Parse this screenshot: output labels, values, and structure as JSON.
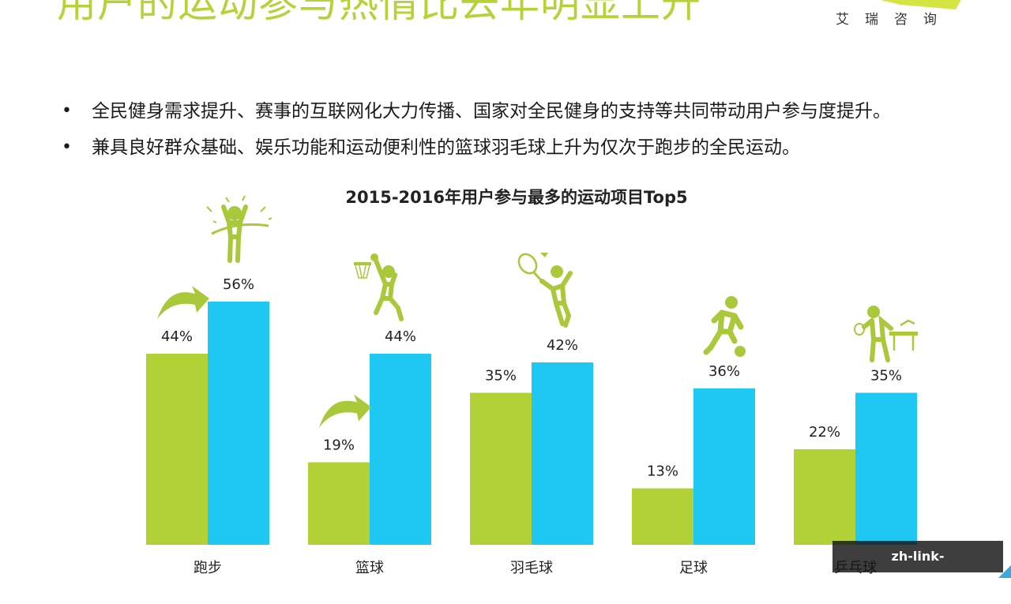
{
  "page": {
    "title": "用户的运动参与热情比去年明显上升",
    "brand": "艾瑞咨询",
    "bullets": [
      "全民健身需求提升、赛事的互联网化大力传播、国家对全民健身的支持等共同带动用户参与度提升。",
      "兼具良好群众基础、娱乐功能和运动便利性的篮球羽毛球上升为仅次于跑步的全民运动。"
    ],
    "bullet_symbol": "•",
    "watermark": "zh-link-lejingsports.com"
  },
  "chart_data": {
    "type": "bar",
    "title": "2015-2016年用户参与最多的运动项目Top5",
    "categories": [
      "跑步",
      "篮球",
      "羽毛球",
      "足球",
      "乒乓球"
    ],
    "series": [
      {
        "values": [
          44,
          19,
          35,
          13,
          22
        ],
        "labels": [
          "44%",
          "19%",
          "35%",
          "13%",
          "22%"
        ]
      },
      {
        "values": [
          56,
          44,
          42,
          36,
          35
        ],
        "labels": [
          "56%",
          "44%",
          "42%",
          "36%",
          "35%"
        ]
      }
    ],
    "ylim": [
      0,
      56
    ],
    "grid": false,
    "colors": [
      "#b1d136",
      "#1ec8f2"
    ],
    "icons": [
      "runner-icon",
      "basketball-player-icon",
      "badminton-player-icon",
      "soccer-player-icon",
      "table-tennis-player-icon"
    ],
    "rising_arrows": [
      "跑步",
      "篮球"
    ]
  }
}
